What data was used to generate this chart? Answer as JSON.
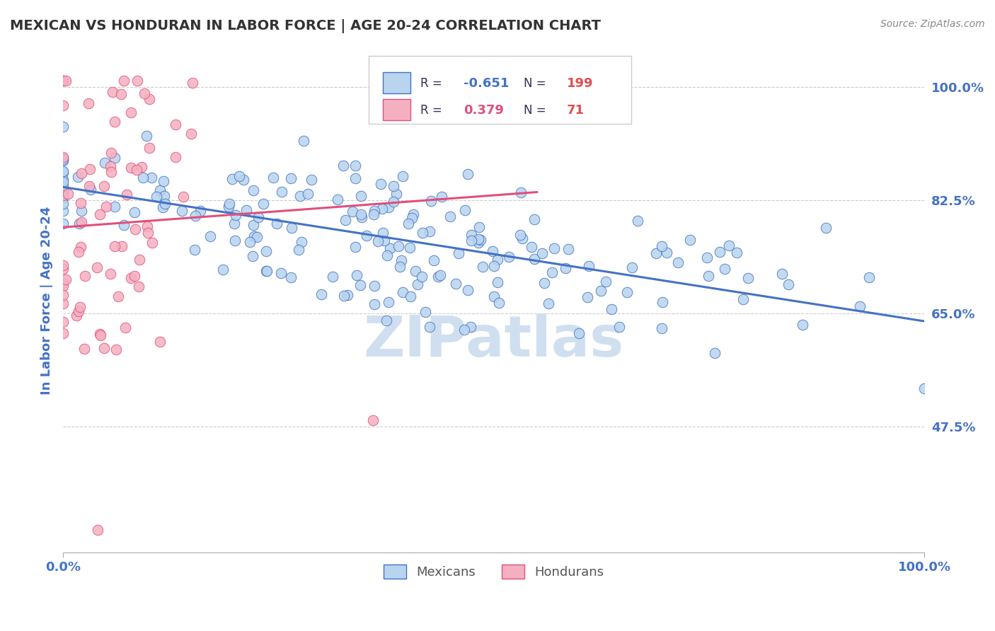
{
  "title": "MEXICAN VS HONDURAN IN LABOR FORCE | AGE 20-24 CORRELATION CHART",
  "source": "Source: ZipAtlas.com",
  "ylabel": "In Labor Force | Age 20-24",
  "xlim": [
    0.0,
    1.0
  ],
  "ylim": [
    0.28,
    1.06
  ],
  "ytick_vals": [
    0.475,
    0.65,
    0.825,
    1.0
  ],
  "ytick_labels": [
    "47.5%",
    "65.0%",
    "82.5%",
    "100.0%"
  ],
  "xtick_vals": [
    0.0,
    1.0
  ],
  "xtick_labels": [
    "0.0%",
    "100.0%"
  ],
  "mexican_R": -0.651,
  "mexican_N": 199,
  "honduran_R": 0.379,
  "honduran_N": 71,
  "mexican_color": "#b8d4ee",
  "honduran_color": "#f4b0c0",
  "mexican_line_color": "#4472c4",
  "honduran_line_color": "#e0507a",
  "background_color": "#ffffff",
  "axis_label_color": "#4472c4",
  "watermark_color": "#d0dff0",
  "legend_label_color": "#555555",
  "title_color": "#333333",
  "source_color": "#888888",
  "grid_color": "#cccccc",
  "annotation_edge_color": "#cccccc"
}
